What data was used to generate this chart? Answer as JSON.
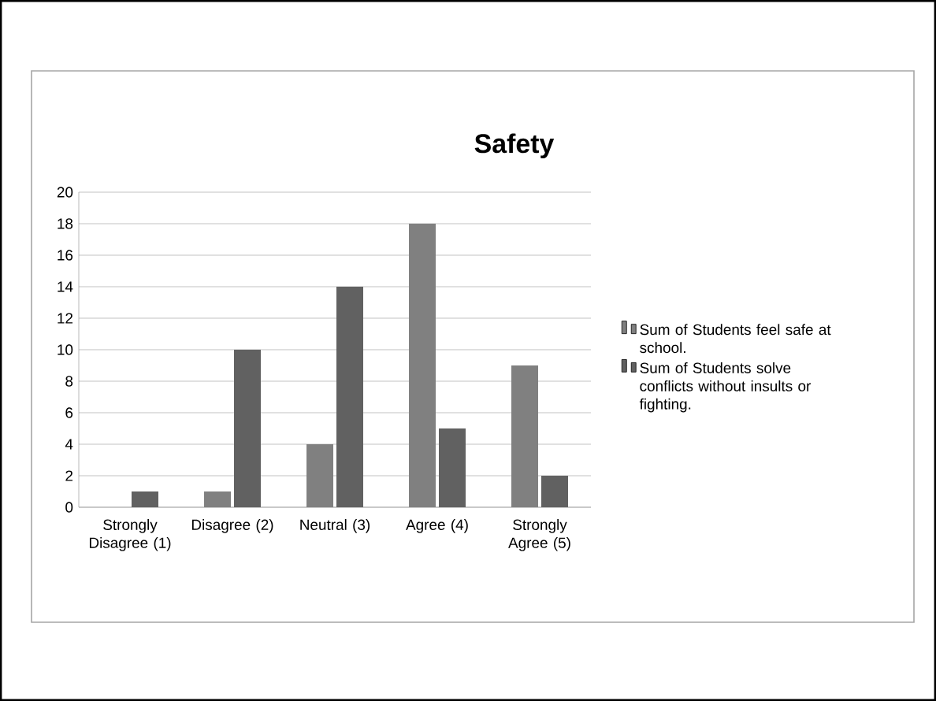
{
  "chart_data": {
    "type": "bar",
    "title": "Safety",
    "categories": [
      "Strongly Disagree (1)",
      "Disagree (2)",
      "Neutral (3)",
      "Agree (4)",
      "Strongly Agree (5)"
    ],
    "series": [
      {
        "name": "Sum of Students feel safe at school.",
        "color": "#808080",
        "values": [
          0,
          1,
          4,
          18,
          9
        ]
      },
      {
        "name": "Sum of Students solve conflicts without insults or fighting.",
        "color": "#616161",
        "values": [
          1,
          10,
          14,
          5,
          2
        ]
      }
    ],
    "ylim": [
      0,
      20
    ],
    "yticks": [
      0,
      2,
      4,
      6,
      8,
      10,
      12,
      14,
      16,
      18,
      20
    ],
    "grid": "y",
    "legend": "right"
  }
}
